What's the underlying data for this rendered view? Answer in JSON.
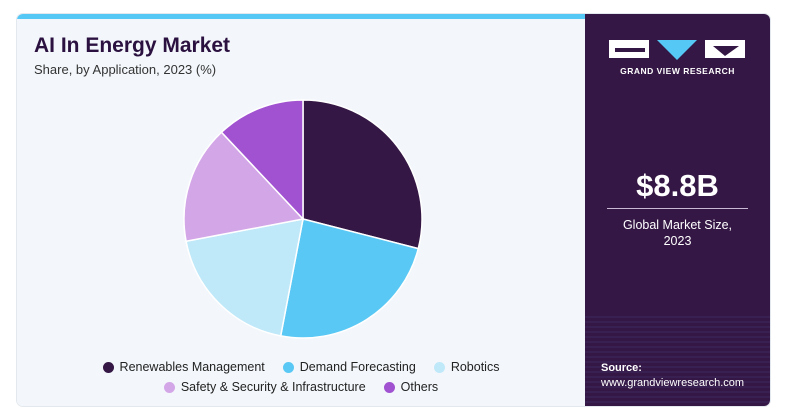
{
  "chart_data": {
    "type": "pie",
    "title": "AI In Energy Market",
    "subtitle": "Share, by Application, 2023 (%)",
    "series": [
      {
        "name": "Renewables Management",
        "value": 29.0,
        "color": "#341744"
      },
      {
        "name": "Demand Forecasting",
        "value": 24.0,
        "color": "#5ac8f4"
      },
      {
        "name": "Robotics",
        "value": 19.0,
        "color": "#bfe8f9"
      },
      {
        "name": "Safety & Security & Infrastructure",
        "value": 16.0,
        "color": "#d3a6e8"
      },
      {
        "name": "Others",
        "value": 12.0,
        "color": "#a052d1"
      }
    ],
    "legend_position": "bottom"
  },
  "legend": {
    "row1": [
      {
        "label": "Renewables Management",
        "color": "#341744"
      },
      {
        "label": "Demand Forecasting",
        "color": "#5ac8f4"
      },
      {
        "label": "Robotics",
        "color": "#bfe8f9"
      }
    ],
    "row2": [
      {
        "label": "Safety & Security & Infrastructure",
        "color": "#d3a6e8"
      },
      {
        "label": "Others",
        "color": "#a052d1"
      }
    ]
  },
  "sidebar": {
    "brand": "GRAND VIEW RESEARCH",
    "market_size": "$8.8B",
    "market_label_line1": "Global Market Size,",
    "market_label_line2": "2023",
    "source_label": "Source:",
    "source_url": "www.grandviewresearch.com"
  },
  "colors": {
    "accent": "#56c8f5",
    "panel": "#341744",
    "background": "#f3f7fb"
  }
}
